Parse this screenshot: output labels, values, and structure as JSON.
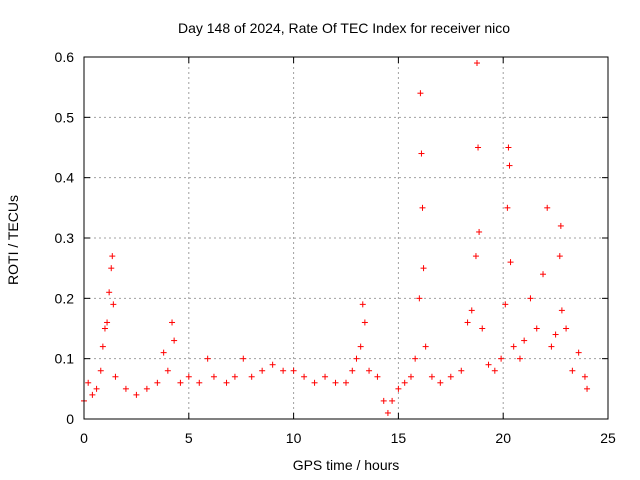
{
  "chart_data": {
    "type": "scatter",
    "title": "Day 148 of 2024, Rate Of TEC Index for receiver nico",
    "xlabel": "GPS time / hours",
    "ylabel": "ROTI / TECUs",
    "xlim": [
      0,
      25
    ],
    "ylim": [
      0,
      0.6
    ],
    "x_ticks": [
      0,
      5,
      10,
      15,
      20,
      25
    ],
    "y_ticks": [
      0,
      0.1,
      0.2,
      0.3,
      0.4,
      0.5,
      0.6
    ],
    "x_tick_labels": [
      "0",
      "5",
      "10",
      "15",
      "20",
      "25"
    ],
    "y_tick_labels": [
      "0",
      "0.1",
      "0.2",
      "0.3",
      "0.4",
      "0.5",
      "0.6"
    ],
    "grid": true,
    "marker": "+",
    "marker_color": "#ff0000",
    "series": [
      {
        "name": "ROTI",
        "points": [
          [
            0.0,
            0.03
          ],
          [
            0.2,
            0.06
          ],
          [
            0.4,
            0.04
          ],
          [
            0.6,
            0.05
          ],
          [
            0.8,
            0.08
          ],
          [
            0.9,
            0.12
          ],
          [
            1.0,
            0.15
          ],
          [
            1.1,
            0.16
          ],
          [
            1.2,
            0.21
          ],
          [
            1.3,
            0.25
          ],
          [
            1.35,
            0.27
          ],
          [
            1.4,
            0.19
          ],
          [
            1.5,
            0.07
          ],
          [
            2.0,
            0.05
          ],
          [
            2.5,
            0.04
          ],
          [
            3.0,
            0.05
          ],
          [
            3.5,
            0.06
          ],
          [
            3.8,
            0.11
          ],
          [
            4.0,
            0.08
          ],
          [
            4.2,
            0.16
          ],
          [
            4.3,
            0.13
          ],
          [
            4.6,
            0.06
          ],
          [
            5.0,
            0.07
          ],
          [
            5.5,
            0.06
          ],
          [
            5.9,
            0.1
          ],
          [
            6.2,
            0.07
          ],
          [
            6.8,
            0.06
          ],
          [
            7.2,
            0.07
          ],
          [
            7.6,
            0.1
          ],
          [
            8.0,
            0.07
          ],
          [
            8.5,
            0.08
          ],
          [
            9.0,
            0.09
          ],
          [
            9.5,
            0.08
          ],
          [
            10.0,
            0.08
          ],
          [
            10.5,
            0.07
          ],
          [
            11.0,
            0.06
          ],
          [
            11.5,
            0.07
          ],
          [
            12.0,
            0.06
          ],
          [
            12.5,
            0.06
          ],
          [
            12.8,
            0.08
          ],
          [
            13.0,
            0.1
          ],
          [
            13.2,
            0.12
          ],
          [
            13.3,
            0.19
          ],
          [
            13.4,
            0.16
          ],
          [
            13.6,
            0.08
          ],
          [
            14.0,
            0.07
          ],
          [
            14.3,
            0.03
          ],
          [
            14.5,
            0.01
          ],
          [
            14.7,
            0.03
          ],
          [
            15.0,
            0.05
          ],
          [
            15.3,
            0.06
          ],
          [
            15.6,
            0.07
          ],
          [
            15.8,
            0.1
          ],
          [
            16.0,
            0.2
          ],
          [
            16.05,
            0.54
          ],
          [
            16.1,
            0.44
          ],
          [
            16.15,
            0.35
          ],
          [
            16.2,
            0.25
          ],
          [
            16.3,
            0.12
          ],
          [
            16.6,
            0.07
          ],
          [
            17.0,
            0.06
          ],
          [
            17.5,
            0.07
          ],
          [
            18.0,
            0.08
          ],
          [
            18.3,
            0.16
          ],
          [
            18.5,
            0.18
          ],
          [
            18.7,
            0.27
          ],
          [
            18.75,
            0.59
          ],
          [
            18.8,
            0.45
          ],
          [
            18.85,
            0.31
          ],
          [
            19.0,
            0.15
          ],
          [
            19.3,
            0.09
          ],
          [
            19.6,
            0.08
          ],
          [
            19.9,
            0.1
          ],
          [
            20.1,
            0.19
          ],
          [
            20.2,
            0.35
          ],
          [
            20.25,
            0.45
          ],
          [
            20.3,
            0.42
          ],
          [
            20.35,
            0.26
          ],
          [
            20.5,
            0.12
          ],
          [
            20.8,
            0.1
          ],
          [
            21.0,
            0.13
          ],
          [
            21.3,
            0.2
          ],
          [
            21.6,
            0.15
          ],
          [
            21.9,
            0.24
          ],
          [
            22.1,
            0.35
          ],
          [
            22.3,
            0.12
          ],
          [
            22.5,
            0.14
          ],
          [
            22.7,
            0.27
          ],
          [
            22.75,
            0.32
          ],
          [
            22.8,
            0.18
          ],
          [
            23.0,
            0.15
          ],
          [
            23.3,
            0.08
          ],
          [
            23.6,
            0.11
          ],
          [
            23.9,
            0.07
          ],
          [
            24.0,
            0.05
          ]
        ]
      }
    ]
  }
}
